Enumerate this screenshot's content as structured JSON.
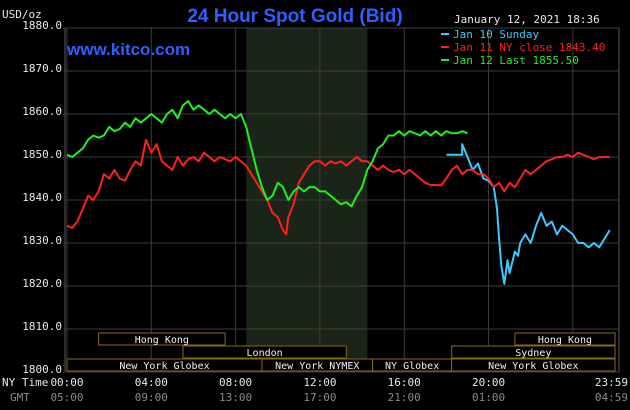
{
  "header": {
    "title": "24 Hour Spot Gold (Bid)",
    "site": "www.kitco.com",
    "timestamp": "January 12, 2021 18:36",
    "unit": "USD/oz"
  },
  "legend": [
    {
      "label": "Jan 10 Sunday",
      "color": "#3ec8ff"
    },
    {
      "label": "Jan 11 NY close 1843.40",
      "color": "#ff2020"
    },
    {
      "label": "Jan 12 Last 1855.50",
      "color": "#22ee22"
    }
  ],
  "axis_labels": {
    "ny_time": "NY Time",
    "gmt": "GMT"
  },
  "sessions": [
    {
      "name": "Hong Kong",
      "row": 0,
      "start": 1.5,
      "end": 7.5
    },
    {
      "name": "Hong Kong",
      "row": 0,
      "start": 21.25,
      "end": 26
    },
    {
      "name": "London",
      "row": 1,
      "start": 5.5,
      "end": 13.25
    },
    {
      "name": "Sydney",
      "row": 1,
      "start": 18.25,
      "end": 26
    },
    {
      "name": "New York Globex",
      "row": 2,
      "start": 0,
      "end": 9.25
    },
    {
      "name": "New York NYMEX",
      "row": 2,
      "start": 9.25,
      "end": 14.5
    },
    {
      "name": "NY Globex",
      "row": 2,
      "start": 14.5,
      "end": 18.25
    },
    {
      "name": "New York Globex",
      "row": 2,
      "start": 18.25,
      "end": 26
    }
  ],
  "chart_data": {
    "type": "line",
    "ylim": [
      1800,
      1880
    ],
    "yticks": [
      1800,
      1810,
      1820,
      1830,
      1840,
      1850,
      1860,
      1870,
      1880
    ],
    "ytick_labels": [
      "1800.0",
      "1810.0",
      "1820.0",
      "1830.0",
      "1840.0",
      "1850.0",
      "1860.0",
      "1870.0",
      "1880.0"
    ],
    "xlim": [
      0,
      26
    ],
    "xticks": [
      0,
      4,
      8,
      12,
      16,
      20,
      24
    ],
    "xtick_labels": [
      "00:00",
      "04:00",
      "08:00",
      "12:00",
      "16:00",
      "20:00",
      "23:59"
    ],
    "gmt_labels": [
      "05:00",
      "09:00",
      "13:00",
      "17:00",
      "21:00",
      "01:00",
      "04:59"
    ],
    "shaded_range": [
      8.5,
      14.25
    ],
    "grid": true,
    "series": [
      {
        "name": "Jan 10 Sunday",
        "color": "#3ec8ff",
        "points": [
          [
            18,
            1850.5
          ],
          [
            18.75,
            1850.5
          ],
          [
            18.75,
            1853
          ],
          [
            19,
            1850
          ],
          [
            19.25,
            1847
          ],
          [
            19.5,
            1848.5
          ],
          [
            19.75,
            1845
          ],
          [
            20,
            1844.5
          ],
          [
            20.25,
            1843
          ],
          [
            20.4,
            1838
          ],
          [
            20.5,
            1831
          ],
          [
            20.6,
            1825
          ],
          [
            20.75,
            1820.5
          ],
          [
            20.9,
            1826
          ],
          [
            21,
            1823
          ],
          [
            21.25,
            1828
          ],
          [
            21.4,
            1827
          ],
          [
            21.5,
            1830
          ],
          [
            21.75,
            1832
          ],
          [
            22,
            1830
          ],
          [
            22.25,
            1834
          ],
          [
            22.5,
            1837
          ],
          [
            22.75,
            1834
          ],
          [
            23,
            1835
          ],
          [
            23.25,
            1832
          ],
          [
            23.5,
            1834
          ],
          [
            23.75,
            1833
          ],
          [
            24,
            1832
          ],
          [
            24.25,
            1830
          ],
          [
            24.5,
            1830
          ],
          [
            24.75,
            1829
          ],
          [
            25,
            1830
          ],
          [
            25.25,
            1829
          ],
          [
            25.5,
            1831
          ],
          [
            25.75,
            1833
          ]
        ]
      },
      {
        "name": "Jan 11 NY close 1843.40",
        "color": "#ff2020",
        "points": [
          [
            0,
            1834
          ],
          [
            0.25,
            1833.5
          ],
          [
            0.5,
            1835
          ],
          [
            0.75,
            1838
          ],
          [
            1,
            1841
          ],
          [
            1.25,
            1840
          ],
          [
            1.5,
            1842
          ],
          [
            1.75,
            1846
          ],
          [
            2,
            1845
          ],
          [
            2.25,
            1847
          ],
          [
            2.5,
            1845
          ],
          [
            2.75,
            1844.5
          ],
          [
            3,
            1847
          ],
          [
            3.25,
            1849
          ],
          [
            3.5,
            1848
          ],
          [
            3.75,
            1854
          ],
          [
            4,
            1851
          ],
          [
            4.25,
            1853
          ],
          [
            4.5,
            1849
          ],
          [
            4.75,
            1848
          ],
          [
            5,
            1847
          ],
          [
            5.25,
            1850
          ],
          [
            5.5,
            1848
          ],
          [
            5.75,
            1849.5
          ],
          [
            6,
            1850
          ],
          [
            6.25,
            1849
          ],
          [
            6.5,
            1851
          ],
          [
            6.75,
            1850
          ],
          [
            7,
            1849
          ],
          [
            7.25,
            1850
          ],
          [
            7.5,
            1849.5
          ],
          [
            7.75,
            1849
          ],
          [
            8,
            1850
          ],
          [
            8.25,
            1849
          ],
          [
            8.5,
            1848
          ],
          [
            8.75,
            1846
          ],
          [
            9,
            1844
          ],
          [
            9.25,
            1842
          ],
          [
            9.5,
            1840
          ],
          [
            9.75,
            1837
          ],
          [
            10,
            1836
          ],
          [
            10.25,
            1833
          ],
          [
            10.4,
            1832
          ],
          [
            10.5,
            1836
          ],
          [
            10.75,
            1839
          ],
          [
            11,
            1844
          ],
          [
            11.25,
            1846
          ],
          [
            11.5,
            1848
          ],
          [
            11.75,
            1849
          ],
          [
            12,
            1849
          ],
          [
            12.25,
            1848
          ],
          [
            12.5,
            1849
          ],
          [
            12.75,
            1848.5
          ],
          [
            13,
            1849
          ],
          [
            13.25,
            1848
          ],
          [
            13.5,
            1849
          ],
          [
            13.75,
            1850
          ],
          [
            14,
            1849
          ],
          [
            14.25,
            1849
          ],
          [
            14.5,
            1848
          ],
          [
            14.75,
            1847
          ],
          [
            15,
            1848
          ],
          [
            15.25,
            1847
          ],
          [
            15.5,
            1846.5
          ],
          [
            15.75,
            1847
          ],
          [
            16,
            1846
          ],
          [
            16.25,
            1847
          ],
          [
            16.5,
            1846
          ],
          [
            16.75,
            1845
          ],
          [
            17,
            1844
          ],
          [
            17.25,
            1843.5
          ],
          [
            17.5,
            1843.5
          ],
          [
            17.75,
            1843.4
          ],
          [
            18,
            1845
          ],
          [
            18.25,
            1847
          ],
          [
            18.5,
            1848
          ],
          [
            18.75,
            1846
          ],
          [
            19,
            1847
          ],
          [
            19.25,
            1847
          ],
          [
            19.5,
            1846
          ],
          [
            19.75,
            1846
          ],
          [
            20,
            1845
          ],
          [
            20.25,
            1843
          ],
          [
            20.5,
            1844
          ],
          [
            20.75,
            1842
          ],
          [
            21,
            1844
          ],
          [
            21.25,
            1843
          ],
          [
            21.5,
            1845
          ],
          [
            21.75,
            1847
          ],
          [
            22,
            1846
          ],
          [
            22.25,
            1847
          ],
          [
            22.5,
            1848
          ],
          [
            22.75,
            1849
          ],
          [
            23,
            1849.5
          ],
          [
            23.25,
            1850
          ],
          [
            23.5,
            1850
          ],
          [
            23.75,
            1850.5
          ],
          [
            24,
            1850
          ],
          [
            24.25,
            1851
          ],
          [
            24.5,
            1850.5
          ],
          [
            24.75,
            1850
          ],
          [
            25,
            1849.5
          ],
          [
            25.25,
            1850
          ],
          [
            25.5,
            1850
          ],
          [
            25.75,
            1850
          ]
        ]
      },
      {
        "name": "Jan 12 Last 1855.50",
        "color": "#22ee22",
        "points": [
          [
            0,
            1850.5
          ],
          [
            0.25,
            1850
          ],
          [
            0.5,
            1851
          ],
          [
            0.75,
            1852
          ],
          [
            1,
            1854
          ],
          [
            1.25,
            1855
          ],
          [
            1.5,
            1854.5
          ],
          [
            1.75,
            1855
          ],
          [
            2,
            1857
          ],
          [
            2.25,
            1856
          ],
          [
            2.5,
            1856.5
          ],
          [
            2.75,
            1858
          ],
          [
            3,
            1857
          ],
          [
            3.25,
            1859
          ],
          [
            3.5,
            1858
          ],
          [
            3.75,
            1859
          ],
          [
            4,
            1860
          ],
          [
            4.25,
            1859
          ],
          [
            4.5,
            1858
          ],
          [
            4.75,
            1860
          ],
          [
            5,
            1861
          ],
          [
            5.25,
            1859
          ],
          [
            5.5,
            1862
          ],
          [
            5.75,
            1863
          ],
          [
            6,
            1861
          ],
          [
            6.25,
            1862
          ],
          [
            6.5,
            1861
          ],
          [
            6.75,
            1860
          ],
          [
            7,
            1861
          ],
          [
            7.25,
            1860
          ],
          [
            7.5,
            1859
          ],
          [
            7.75,
            1860
          ],
          [
            8,
            1859
          ],
          [
            8.25,
            1860
          ],
          [
            8.5,
            1857
          ],
          [
            8.75,
            1852
          ],
          [
            9,
            1847
          ],
          [
            9.25,
            1843
          ],
          [
            9.5,
            1840
          ],
          [
            9.75,
            1841
          ],
          [
            10,
            1844
          ],
          [
            10.25,
            1843
          ],
          [
            10.5,
            1840
          ],
          [
            10.75,
            1842
          ],
          [
            11,
            1843
          ],
          [
            11.25,
            1842
          ],
          [
            11.5,
            1843
          ],
          [
            11.75,
            1843
          ],
          [
            12,
            1842
          ],
          [
            12.25,
            1842
          ],
          [
            12.5,
            1841
          ],
          [
            12.75,
            1840
          ],
          [
            13,
            1839
          ],
          [
            13.25,
            1839.5
          ],
          [
            13.5,
            1838.5
          ],
          [
            13.75,
            1841
          ],
          [
            14,
            1843
          ],
          [
            14.25,
            1847
          ],
          [
            14.5,
            1849
          ],
          [
            14.75,
            1852
          ],
          [
            15,
            1853
          ],
          [
            15.25,
            1855
          ],
          [
            15.5,
            1855
          ],
          [
            15.75,
            1856
          ],
          [
            16,
            1855
          ],
          [
            16.25,
            1856
          ],
          [
            16.5,
            1855.5
          ],
          [
            16.75,
            1855
          ],
          [
            17,
            1856
          ],
          [
            17.25,
            1855
          ],
          [
            17.5,
            1856
          ],
          [
            17.75,
            1855
          ],
          [
            18,
            1856
          ],
          [
            18.25,
            1855.5
          ],
          [
            18.5,
            1855.5
          ],
          [
            18.75,
            1856
          ],
          [
            19,
            1855.5
          ]
        ]
      }
    ]
  }
}
